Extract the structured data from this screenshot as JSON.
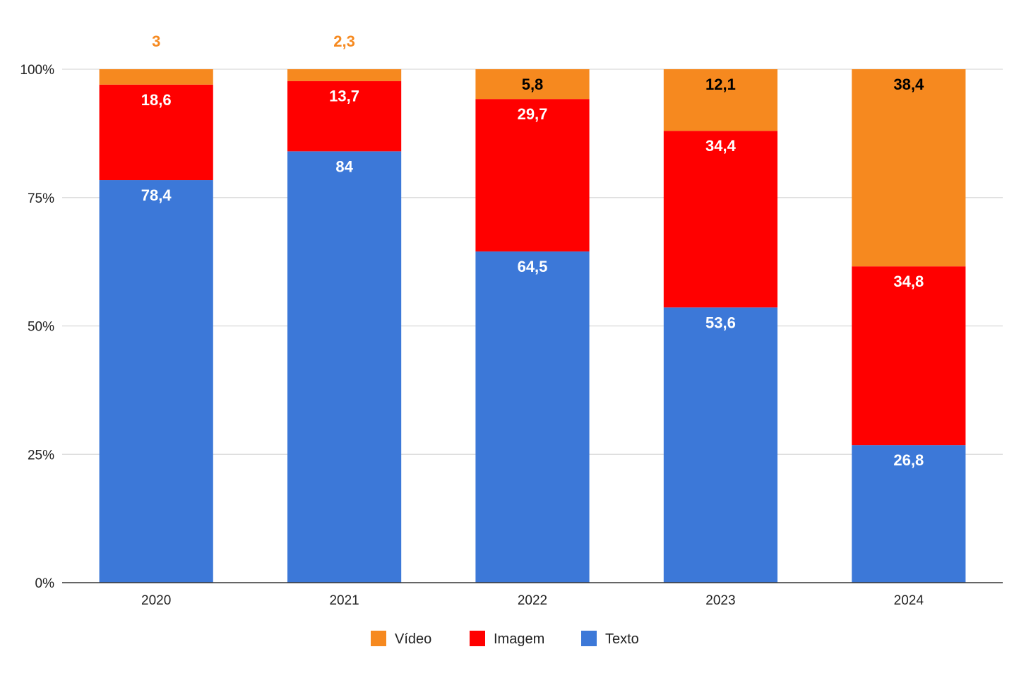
{
  "chart_data": {
    "type": "bar",
    "stacked": true,
    "normalized": true,
    "title": "",
    "xlabel": "",
    "ylabel": "",
    "categories": [
      "2020",
      "2021",
      "2022",
      "2023",
      "2024"
    ],
    "ylim": [
      0,
      100
    ],
    "y_ticks": [
      "0%",
      "25%",
      "50%",
      "75%",
      "100%"
    ],
    "y_tick_values": [
      0,
      25,
      50,
      75,
      100
    ],
    "grid": true,
    "legend_position": "bottom",
    "series": [
      {
        "name": "Texto",
        "color": "#3c78d8",
        "label_color": "#ffffff",
        "values": [
          78.4,
          84,
          64.5,
          53.6,
          26.8
        ],
        "labels": [
          "78,4",
          "84",
          "64,5",
          "53,6",
          "26,8"
        ]
      },
      {
        "name": "Imagem",
        "color": "#ff0000",
        "label_color": "#ffffff",
        "values": [
          18.6,
          13.7,
          29.7,
          34.4,
          34.8
        ],
        "labels": [
          "18,6",
          "13,7",
          "29,7",
          "34,4",
          "34,8"
        ]
      },
      {
        "name": "Vídeo",
        "color": "#f6891f",
        "label_color": "#000000",
        "label_color_outside": "#f6891f",
        "values": [
          3,
          2.3,
          5.8,
          12.1,
          38.4
        ],
        "labels": [
          "3",
          "2,3",
          "5,8",
          "12,1",
          "38,4"
        ]
      }
    ],
    "legend_order": [
      "Vídeo",
      "Imagem",
      "Texto"
    ]
  }
}
